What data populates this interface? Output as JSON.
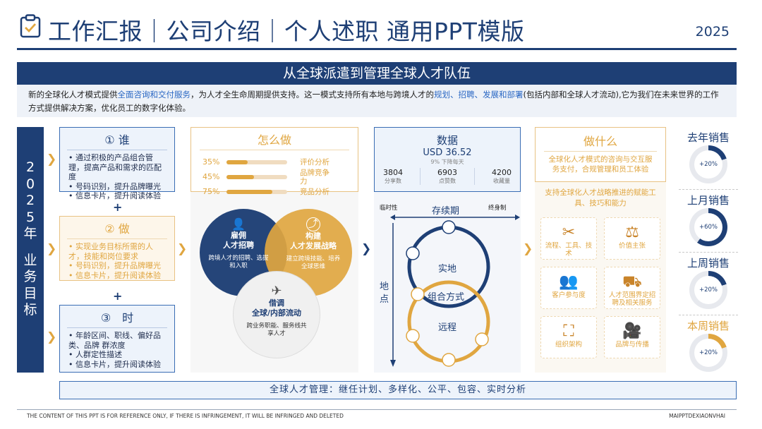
{
  "header": {
    "title": "工作汇报｜公司介绍｜个人述职 通用PPT模版",
    "year": "2025",
    "icon": "clipboard-check-icon"
  },
  "banner": "从全球派遣到管理全球人才队伍",
  "intro": {
    "p1": "新的全球化人才模式提供",
    "h1": "全面咨询和交付服务",
    "p2": "，为人才全生命周期提供支持。这一模式支持所有本地与跨境人才的",
    "h2": "规划、招聘、发展和部署",
    "p3": "(包括内部和全球人才流动),它为我们在未来世界的工作方式提供解决方案，优化员工的数字化体验。"
  },
  "goal_bar": [
    "2",
    "0",
    "2",
    "5",
    "年",
    "",
    "业",
    "务",
    "目",
    "标"
  ],
  "who": {
    "title": "① 谁",
    "items": [
      "通过积极的产品组合管理，提高产品和需求的匹配度",
      "号码识别，提升品牌曝光",
      "信息卡片，提升阅读体验"
    ]
  },
  "do": {
    "title": "② 做",
    "items": [
      "实现业务目标所需的人才，技能和岗位要求",
      "号码识别，提升品牌曝光",
      "信息卡片，提升阅读体验"
    ]
  },
  "when": {
    "title": "③　时",
    "items": [
      "年龄区间、职线、偏好品类、品牌 群浓度",
      "人群定性描述",
      "信息卡片，提升阅读体验"
    ]
  },
  "plus": "+",
  "how": {
    "title": "怎么做",
    "bars": [
      {
        "pct_label": "35%",
        "value": 0.35,
        "label": "评价分析"
      },
      {
        "pct_label": "45%",
        "value": 0.45,
        "label": "品牌竞争力"
      },
      {
        "pct_label": "75%",
        "value": 0.75,
        "label": "竞品分析"
      }
    ],
    "circles": [
      {
        "title": "雇佣\n人才招聘",
        "desc": "跨境人才的招聘、选拔和入职",
        "icon": "person-icon"
      },
      {
        "title": "构建\n人才发展战略",
        "desc": "建立跨境技能、培养全球思维",
        "icon": "growth-icon"
      },
      {
        "title": "借调\n全球/内部流动",
        "desc": "跨业务职能、服务线共享人才",
        "icon": "airplane-icon"
      }
    ]
  },
  "data": {
    "title": "数据",
    "amount": "USD 36.52",
    "sub": "9%  下降每天",
    "stats": [
      {
        "value": "3804",
        "label": "分享数"
      },
      {
        "value": "6903",
        "label": "点赞数"
      },
      {
        "value": "4200",
        "label": "收藏量"
      }
    ],
    "axis_left": "临时性",
    "axis_mid": "存续期",
    "axis_right": "终身制",
    "axis_v": "地点",
    "ring_top": "实地",
    "ring_mid": "组合方式",
    "ring_bottom": "远程"
  },
  "what": {
    "title": "做什么",
    "desc": "全球化人才模式的咨询与交互服务支付，合规管理和员工体验",
    "sub": "支持全球化人才战略推进的赋能工具、技巧和能力",
    "tools": [
      {
        "label": "流程、工具、技术",
        "icon": "wrench-icon",
        "glyph": "✂"
      },
      {
        "label": "价值主张",
        "icon": "scale-icon",
        "glyph": "⚖"
      },
      {
        "label": "客户参与度",
        "icon": "people-icon",
        "glyph": "👥"
      },
      {
        "label": "人才范围界定招聘及相关服务",
        "icon": "truck-icon",
        "glyph": "⛟"
      },
      {
        "label": "组织架构",
        "icon": "org-chart-icon",
        "glyph": "⛶"
      },
      {
        "label": "品牌与传播",
        "icon": "camera-icon",
        "glyph": "🎥"
      }
    ]
  },
  "sales": [
    {
      "title": "去年销售",
      "label": "+20%",
      "value": 0.2,
      "color": "#1e3f75"
    },
    {
      "title": "上月销售",
      "label": "+60%",
      "value": 0.6,
      "color": "#1e3f75"
    },
    {
      "title": "上周销售",
      "label": "+20%",
      "value": 0.2,
      "color": "#1e3f75"
    },
    {
      "title": "本周销售",
      "label": "+20%",
      "value": 0.2,
      "color": "#e0a640"
    }
  ],
  "footer": {
    "bar": "全球人才管理：继任计划、多样化、公平、包容、实时分析",
    "note": "THE CONTENT OF THIS PPT IS FOR REFERENCE ONLY, IF THERE IS INFRINGEMENT, IT WILL BE INFRINGED AND DELETED",
    "brand": "MAIPPTDEXIAONVHAI"
  },
  "colors": {
    "navy": "#1e3f75",
    "gold": "#e0a640",
    "blue": "#3a6db4"
  }
}
